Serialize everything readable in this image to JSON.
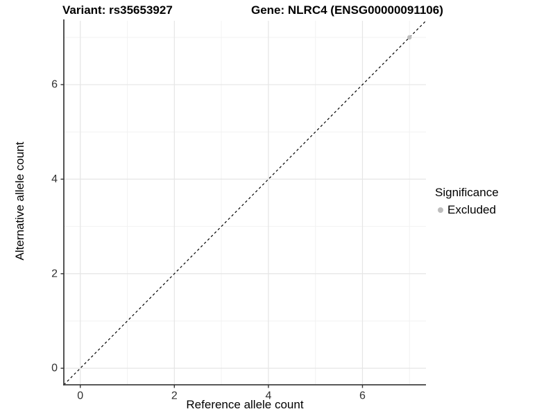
{
  "chart_data": {
    "type": "scatter",
    "title_left": "Variant: rs35653927",
    "title_right": "Gene: NLRC4 (ENSG00000091106)",
    "xlabel": "Reference allele count",
    "ylabel": "Alternative allele count",
    "xlim": [
      -0.35,
      7.35
    ],
    "ylim": [
      -0.35,
      7.35
    ],
    "xticks": [
      0,
      2,
      4,
      6
    ],
    "yticks": [
      0,
      2,
      4,
      6
    ],
    "xticks_minor": [
      1,
      3,
      5,
      7
    ],
    "yticks_minor": [
      1,
      3,
      5,
      7
    ],
    "grid": "major+minor",
    "reference_line": {
      "type": "identity",
      "style": "dashed",
      "color": "#000000"
    },
    "series": [
      {
        "name": "Excluded",
        "color": "#bdbdbd",
        "marker": "circle",
        "points": [
          {
            "x": 7,
            "y": 7
          }
        ]
      }
    ],
    "legend": {
      "title": "Significance",
      "position": "right",
      "entries": [
        {
          "label": "Excluded",
          "color": "#bdbdbd"
        }
      ]
    }
  },
  "colors": {
    "background": "#ffffff",
    "grid_major": "#e5e5e5",
    "grid_minor": "#f2f2f2",
    "axis_line": "#404040",
    "tick_mark": "#333333",
    "tick_label": "#303030",
    "dashed_line": "#000000"
  }
}
